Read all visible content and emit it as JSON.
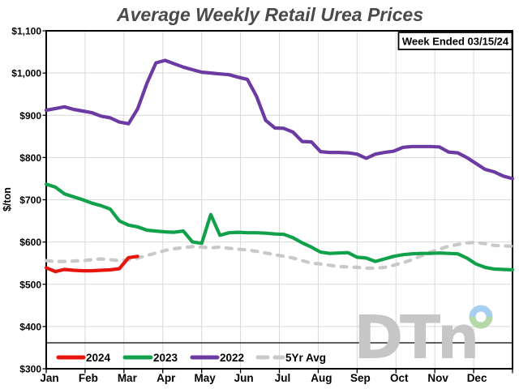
{
  "header": {
    "title": "Average Weekly Retail Urea Prices",
    "week_ended_label": "Week Ended 03/15/24"
  },
  "watermark": {
    "text": "DTn"
  },
  "colors": {
    "red_2024": "#e8150f",
    "green_2023": "#12a14b",
    "purple_2022": "#6b3aa2",
    "gray_5yr": "#c9c9c9",
    "gridline": "#d9d9d9",
    "plot_border": "#000000",
    "title_gray": "#4a4a4a",
    "logo_gray": "#c6c6c6",
    "logo_ring_blue": "#a6d0ee",
    "logo_ring_green": "#b4d8a6"
  },
  "chart_data": {
    "type": "line",
    "title": "Average Weekly Retail Urea Prices",
    "xlabel": "",
    "ylabel": "$/ton",
    "ylim": [
      300,
      1100
    ],
    "y_ticks": [
      300,
      400,
      500,
      600,
      700,
      800,
      900,
      1000,
      1100
    ],
    "y_tick_labels": [
      "$300",
      "$400",
      "$500",
      "$600",
      "$700",
      "$800",
      "$900",
      "$1,000",
      "$1,100"
    ],
    "x_tick_labels": [
      "Jan",
      "Feb",
      "Mar",
      "Apr",
      "May",
      "Jun",
      "Jul",
      "Aug",
      "Sep",
      "Oct",
      "Nov",
      "Dec"
    ],
    "x_unit": "week of year",
    "weeks": 52,
    "grid": true,
    "legend_position": "bottom",
    "annotation": "Week Ended 03/15/24",
    "series": [
      {
        "name": "2024",
        "color": "#e8150f",
        "style": "solid",
        "values": [
          539,
          530,
          535,
          533,
          532,
          532,
          533,
          534,
          537,
          563,
          566
        ]
      },
      {
        "name": "2023",
        "color": "#12a14b",
        "style": "solid",
        "values": [
          737,
          730,
          714,
          707,
          700,
          692,
          686,
          678,
          650,
          640,
          636,
          628,
          626,
          624,
          623,
          626,
          600,
          597,
          665,
          616,
          622,
          623,
          622,
          622,
          621,
          619,
          618,
          610,
          598,
          588,
          576,
          573,
          574,
          575,
          564,
          562,
          554,
          560,
          566,
          570,
          572,
          573,
          573,
          574,
          573,
          572,
          562,
          548,
          540,
          536,
          535,
          534
        ]
      },
      {
        "name": "2022",
        "color": "#6b3aa2",
        "style": "solid",
        "values": [
          912,
          916,
          920,
          914,
          910,
          906,
          898,
          894,
          884,
          880,
          915,
          975,
          1024,
          1030,
          1022,
          1014,
          1008,
          1002,
          1000,
          998,
          996,
          990,
          985,
          945,
          888,
          870,
          869,
          860,
          838,
          837,
          814,
          812,
          812,
          811,
          808,
          798,
          808,
          812,
          815,
          824,
          826,
          826,
          826,
          825,
          813,
          811,
          800,
          786,
          772,
          766,
          756,
          750
        ]
      },
      {
        "name": "5Yr Avg",
        "color": "#c9c9c9",
        "style": "dashed",
        "values": [
          556,
          554,
          554,
          555,
          556,
          558,
          560,
          558,
          556,
          558,
          562,
          568,
          574,
          580,
          584,
          587,
          589,
          588,
          586,
          588,
          585,
          583,
          581,
          578,
          574,
          570,
          566,
          562,
          556,
          550,
          548,
          545,
          542,
          541,
          540,
          538,
          538,
          540,
          545,
          551,
          558,
          567,
          576,
          583,
          590,
          594,
          598,
          599,
          596,
          592,
          591,
          590
        ]
      }
    ]
  }
}
